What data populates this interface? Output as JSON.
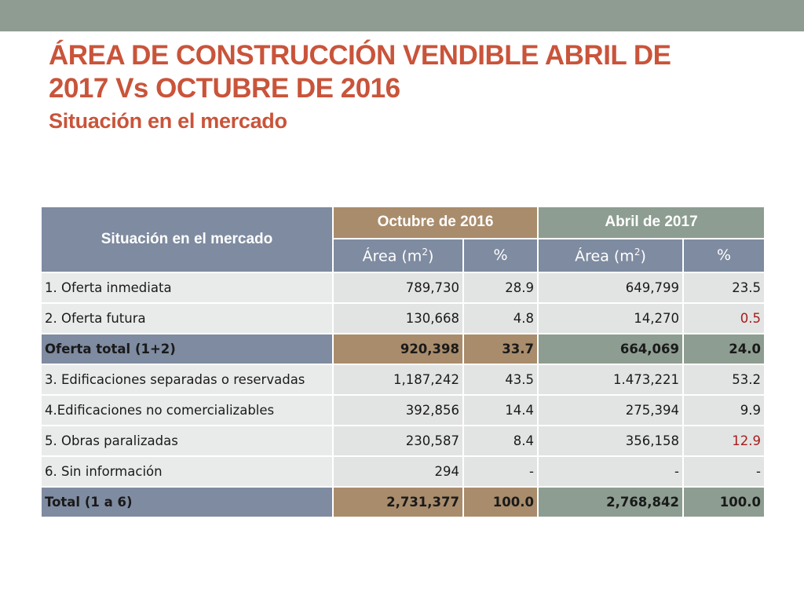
{
  "slide": {
    "title_line1": "ÁREA DE CONSTRUCCIÓN VENDIBLE ABRIL DE",
    "title_line2": "2017 Vs OCTUBRE DE 2016",
    "subtitle": "Situación en el mercado",
    "colors": {
      "top_band": "#8e9c92",
      "title": "#c9543a",
      "header_blue": "#7e8ba0",
      "header_brown": "#a98c6c",
      "header_green": "#8d9d91",
      "row_light": "#e9ebea",
      "highlight_red": "#a61c1c"
    }
  },
  "table": {
    "header_situacion": "Situación en el mercado",
    "header_octubre": "Octubre de 2016",
    "header_abril": "Abril de 2017",
    "sub_area": "Área (m",
    "sub_area_sup": "2",
    "sub_area_close": ")",
    "sub_pct": "%",
    "rows": [
      {
        "label": "1. Oferta inmediata",
        "oct_area": "789,730",
        "oct_pct": "28.9",
        "abr_area": "649,799",
        "abr_pct": "23.5"
      },
      {
        "label": "2. Oferta futura",
        "oct_area": "130,668",
        "oct_pct": "4.8",
        "abr_area": "14,270",
        "abr_pct": "0.5"
      },
      {
        "label": "Oferta total (1+2)",
        "oct_area": "920,398",
        "oct_pct": "33.7",
        "abr_area": "664,069",
        "abr_pct": "24.0"
      },
      {
        "label": "3. Edificaciones separadas o reservadas",
        "oct_area": "1,187,242",
        "oct_pct": "43.5",
        "abr_area": "1.473,221",
        "abr_pct": "53.2"
      },
      {
        "label": "4.Edificaciones no comercializables",
        "oct_area": "392,856",
        "oct_pct": "14.4",
        "abr_area": "275,394",
        "abr_pct": "9.9"
      },
      {
        "label": "5. Obras paralizadas",
        "oct_area": "230,587",
        "oct_pct": "8.4",
        "abr_area": "356,158",
        "abr_pct": "12.9"
      },
      {
        "label": "6. Sin información",
        "oct_area": "294",
        "oct_pct": "-",
        "abr_area": "-",
        "abr_pct": "-"
      },
      {
        "label": "Total (1 a 6)",
        "oct_area": "2,731,377",
        "oct_pct": "100.0",
        "abr_area": "2,768,842",
        "abr_pct": "100.0"
      }
    ]
  }
}
